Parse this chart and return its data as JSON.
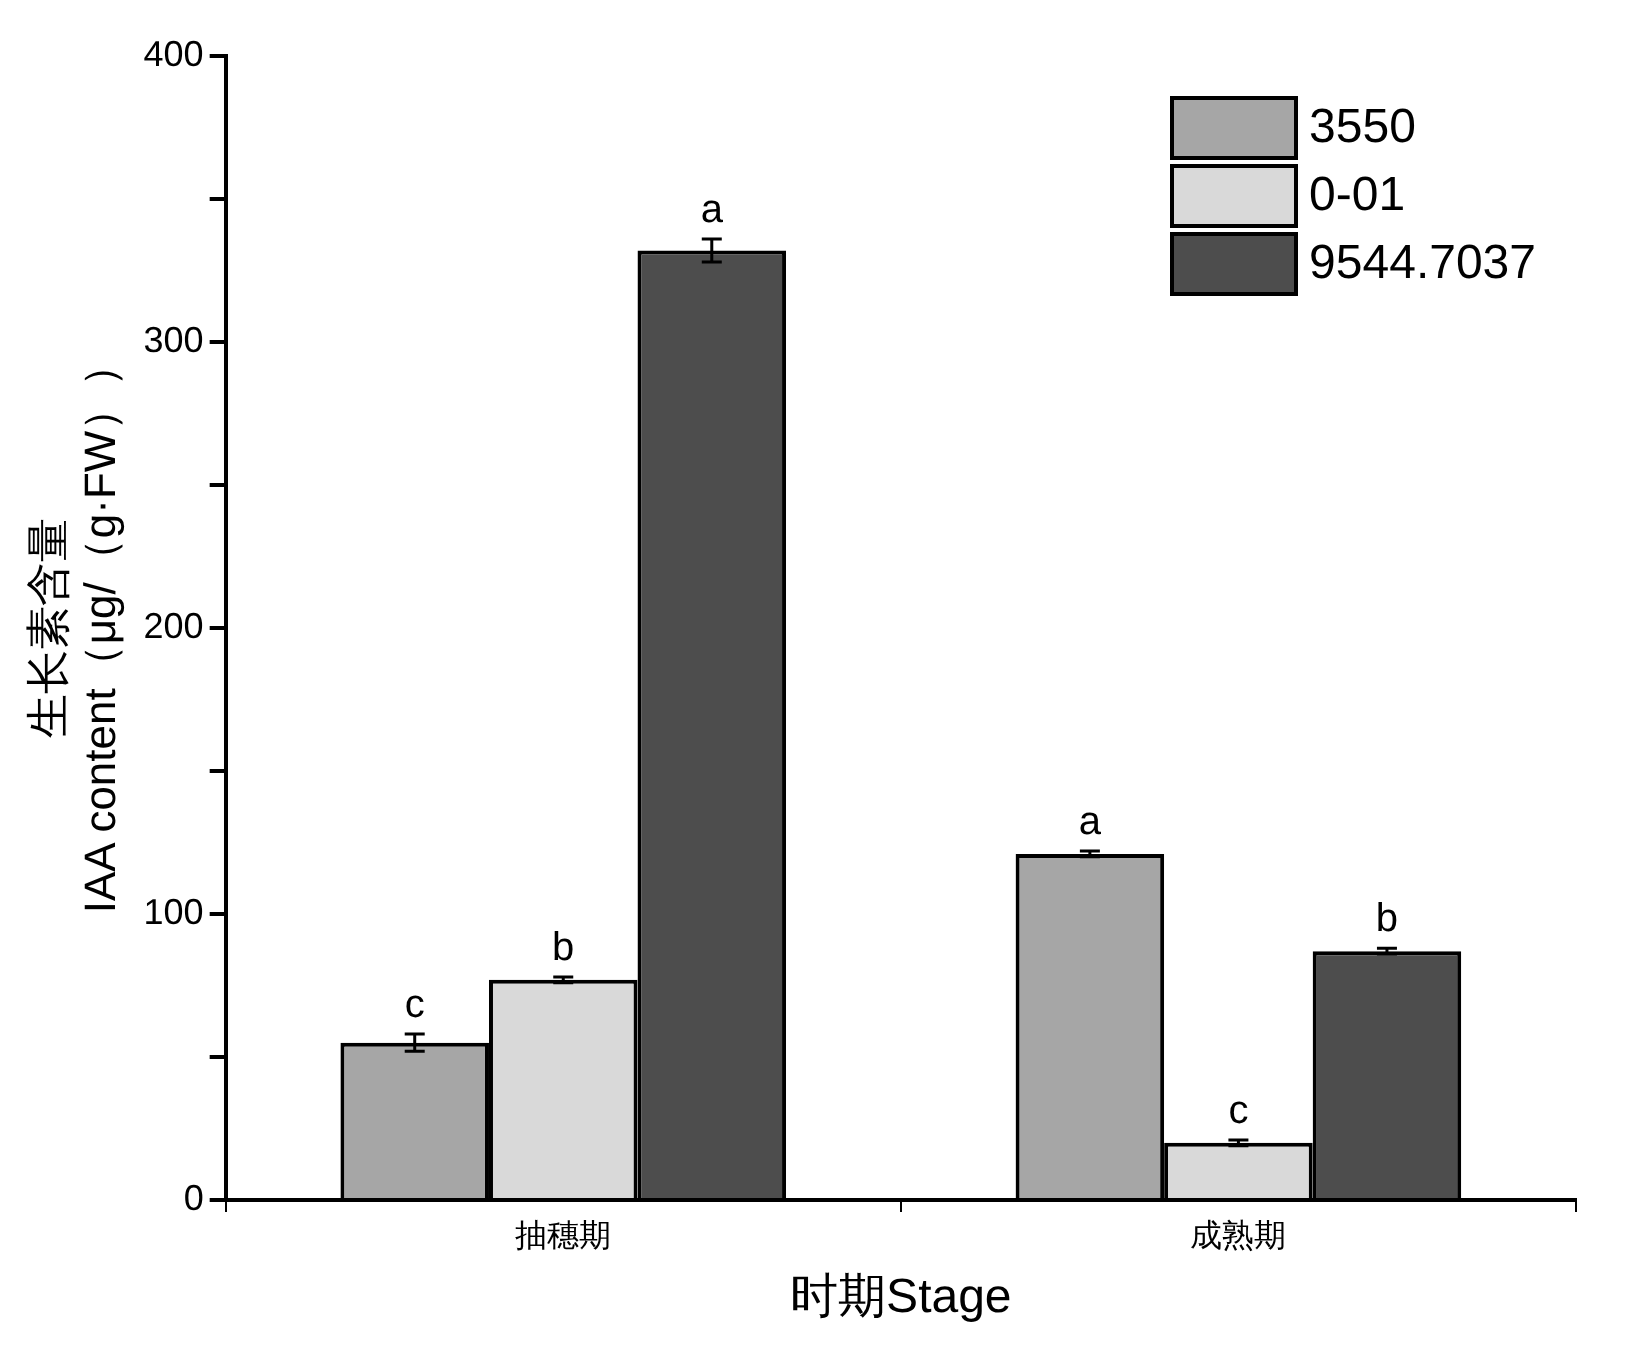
{
  "chart_data": {
    "type": "bar",
    "xlabel": "时期Stage",
    "ylabel": "生长素含量\nIAA content（μg/（g·FW））",
    "categories": [
      "抽穗期",
      "成熟期"
    ],
    "series": [
      {
        "name": "3550",
        "color": "#a6a6a6",
        "values": [
          55,
          121
        ],
        "errors": [
          3,
          1
        ],
        "value_labels": [
          "c",
          "a"
        ]
      },
      {
        "name": "0-01",
        "color": "#d9d9d9",
        "values": [
          77,
          20
        ],
        "errors": [
          1,
          1
        ],
        "value_labels": [
          "b",
          "c"
        ]
      },
      {
        "name": "9544.7037",
        "color": "#4d4d4d",
        "values": [
          332,
          87
        ],
        "errors": [
          4,
          1
        ],
        "value_labels": [
          "a",
          "b"
        ]
      }
    ],
    "ylim": [
      0,
      400
    ],
    "yticks": [
      0,
      {
        "value": 50,
        "label": null
      },
      100,
      {
        "value": 150,
        "label": null
      },
      200,
      {
        "value": 250,
        "label": null
      },
      300,
      {
        "value": 350,
        "label": null
      },
      400
    ],
    "grid": false,
    "legend": "top right"
  }
}
